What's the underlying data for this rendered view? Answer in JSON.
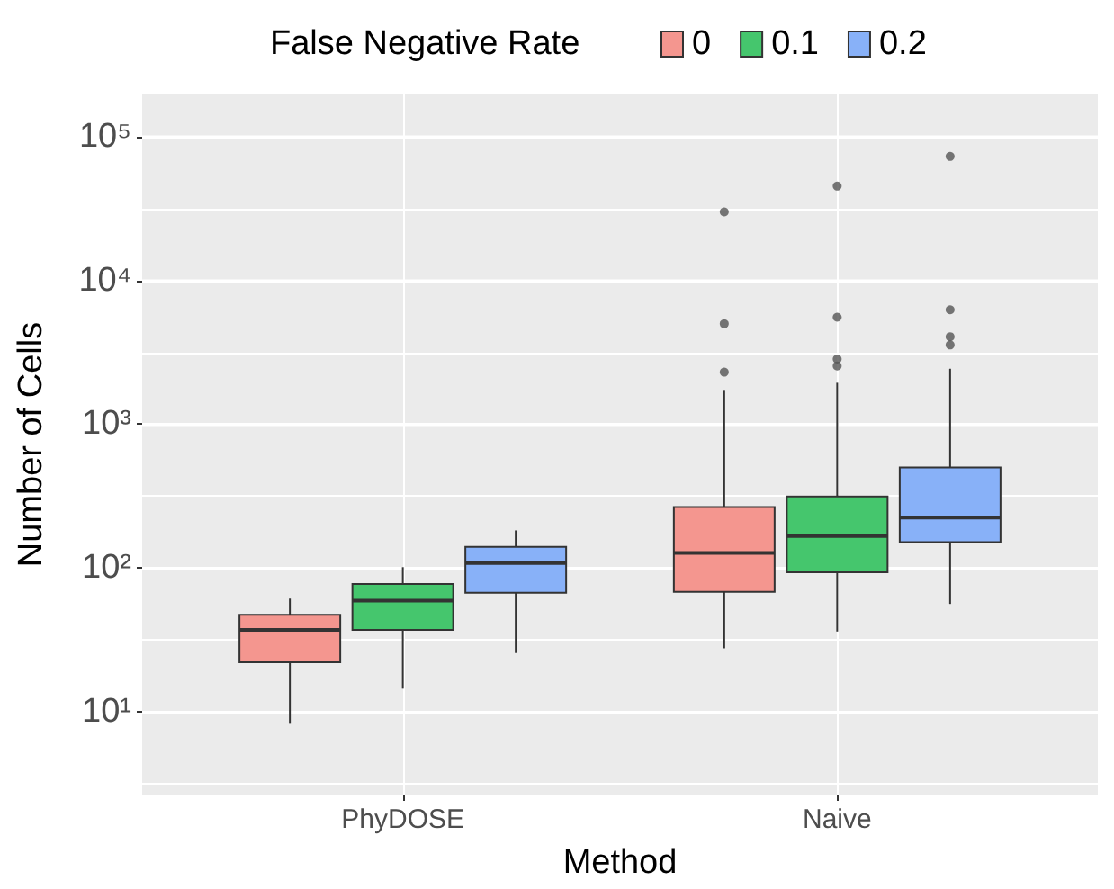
{
  "chart_data": {
    "type": "box",
    "xlabel": "Method",
    "ylabel": "Number of Cells",
    "legend_title": "False Negative Rate",
    "legend": "top",
    "grid": true,
    "log": "y",
    "categories": [
      "PhyDOSE",
      "Naive"
    ],
    "ylim": [
      2.6,
      200000
    ],
    "yticks": [
      {
        "value": 3.162,
        "label": null
      },
      {
        "value": 10,
        "label": "10¹"
      },
      {
        "value": 31.62,
        "label": null
      },
      {
        "value": 100,
        "label": "10²"
      },
      {
        "value": 316.2,
        "label": null
      },
      {
        "value": 1000,
        "label": "10³"
      },
      {
        "value": 3162,
        "label": null
      },
      {
        "value": 10000,
        "label": "10⁴"
      },
      {
        "value": 31623,
        "label": null
      },
      {
        "value": 100000,
        "label": "10⁵"
      }
    ],
    "series": [
      {
        "name": "0",
        "color": "#f4968f",
        "boxes": [
          {
            "low": 8.2,
            "q1": 22,
            "median": 37,
            "q3": 47,
            "high": 61
          },
          {
            "low": 27.5,
            "q1": 68,
            "median": 127,
            "q3": 265,
            "high": 1730,
            "outliers": [
              2300,
              5000,
              30000
            ]
          }
        ]
      },
      {
        "name": "0.1",
        "color": "#45c66d",
        "boxes": [
          {
            "low": 14.4,
            "q1": 37,
            "median": 59,
            "q3": 77,
            "high": 101
          },
          {
            "low": 36,
            "q1": 93,
            "median": 166,
            "q3": 313,
            "high": 1940,
            "outliers": [
              2540,
              2840,
              5550,
              45400
            ]
          }
        ]
      },
      {
        "name": "0.2",
        "color": "#88b1f8",
        "boxes": [
          {
            "low": 25.5,
            "q1": 67,
            "median": 108,
            "q3": 140,
            "high": 182
          },
          {
            "low": 56,
            "q1": 151,
            "median": 223,
            "q3": 500,
            "high": 2430,
            "outliers": [
              3560,
              4060,
              6250,
              73000
            ]
          }
        ]
      }
    ]
  }
}
